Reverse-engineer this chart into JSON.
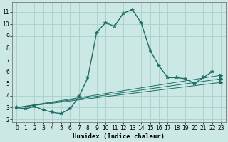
{
  "title": "",
  "xlabel": "Humidex (Indice chaleur)",
  "ylabel": "",
  "background_color": "#cce8e5",
  "grid_color": "#a8d0cc",
  "line_color": "#1a6e65",
  "xlim": [
    -0.5,
    23.5
  ],
  "ylim": [
    1.8,
    11.8
  ],
  "xticks": [
    0,
    1,
    2,
    3,
    4,
    5,
    6,
    7,
    8,
    9,
    10,
    11,
    12,
    13,
    14,
    15,
    16,
    17,
    18,
    19,
    20,
    21,
    22,
    23
  ],
  "yticks": [
    2,
    3,
    4,
    5,
    6,
    7,
    8,
    9,
    10,
    11
  ],
  "main_line": {
    "x": [
      0,
      1,
      2,
      3,
      4,
      5,
      6,
      7,
      8,
      9,
      10,
      11,
      12,
      13,
      14,
      15,
      16,
      17,
      18,
      19,
      20,
      21,
      22
    ],
    "y": [
      3.0,
      2.9,
      3.1,
      2.8,
      2.6,
      2.5,
      2.9,
      3.9,
      5.5,
      9.3,
      10.1,
      9.8,
      10.9,
      11.2,
      10.1,
      7.8,
      6.5,
      5.5,
      5.5,
      5.4,
      5.0,
      5.5,
      6.0
    ]
  },
  "straight_lines": [
    {
      "x": [
        0,
        23
      ],
      "y": [
        3.0,
        5.7
      ]
    },
    {
      "x": [
        0,
        23
      ],
      "y": [
        3.0,
        5.4
      ]
    },
    {
      "x": [
        0,
        23
      ],
      "y": [
        3.0,
        5.1
      ]
    }
  ]
}
